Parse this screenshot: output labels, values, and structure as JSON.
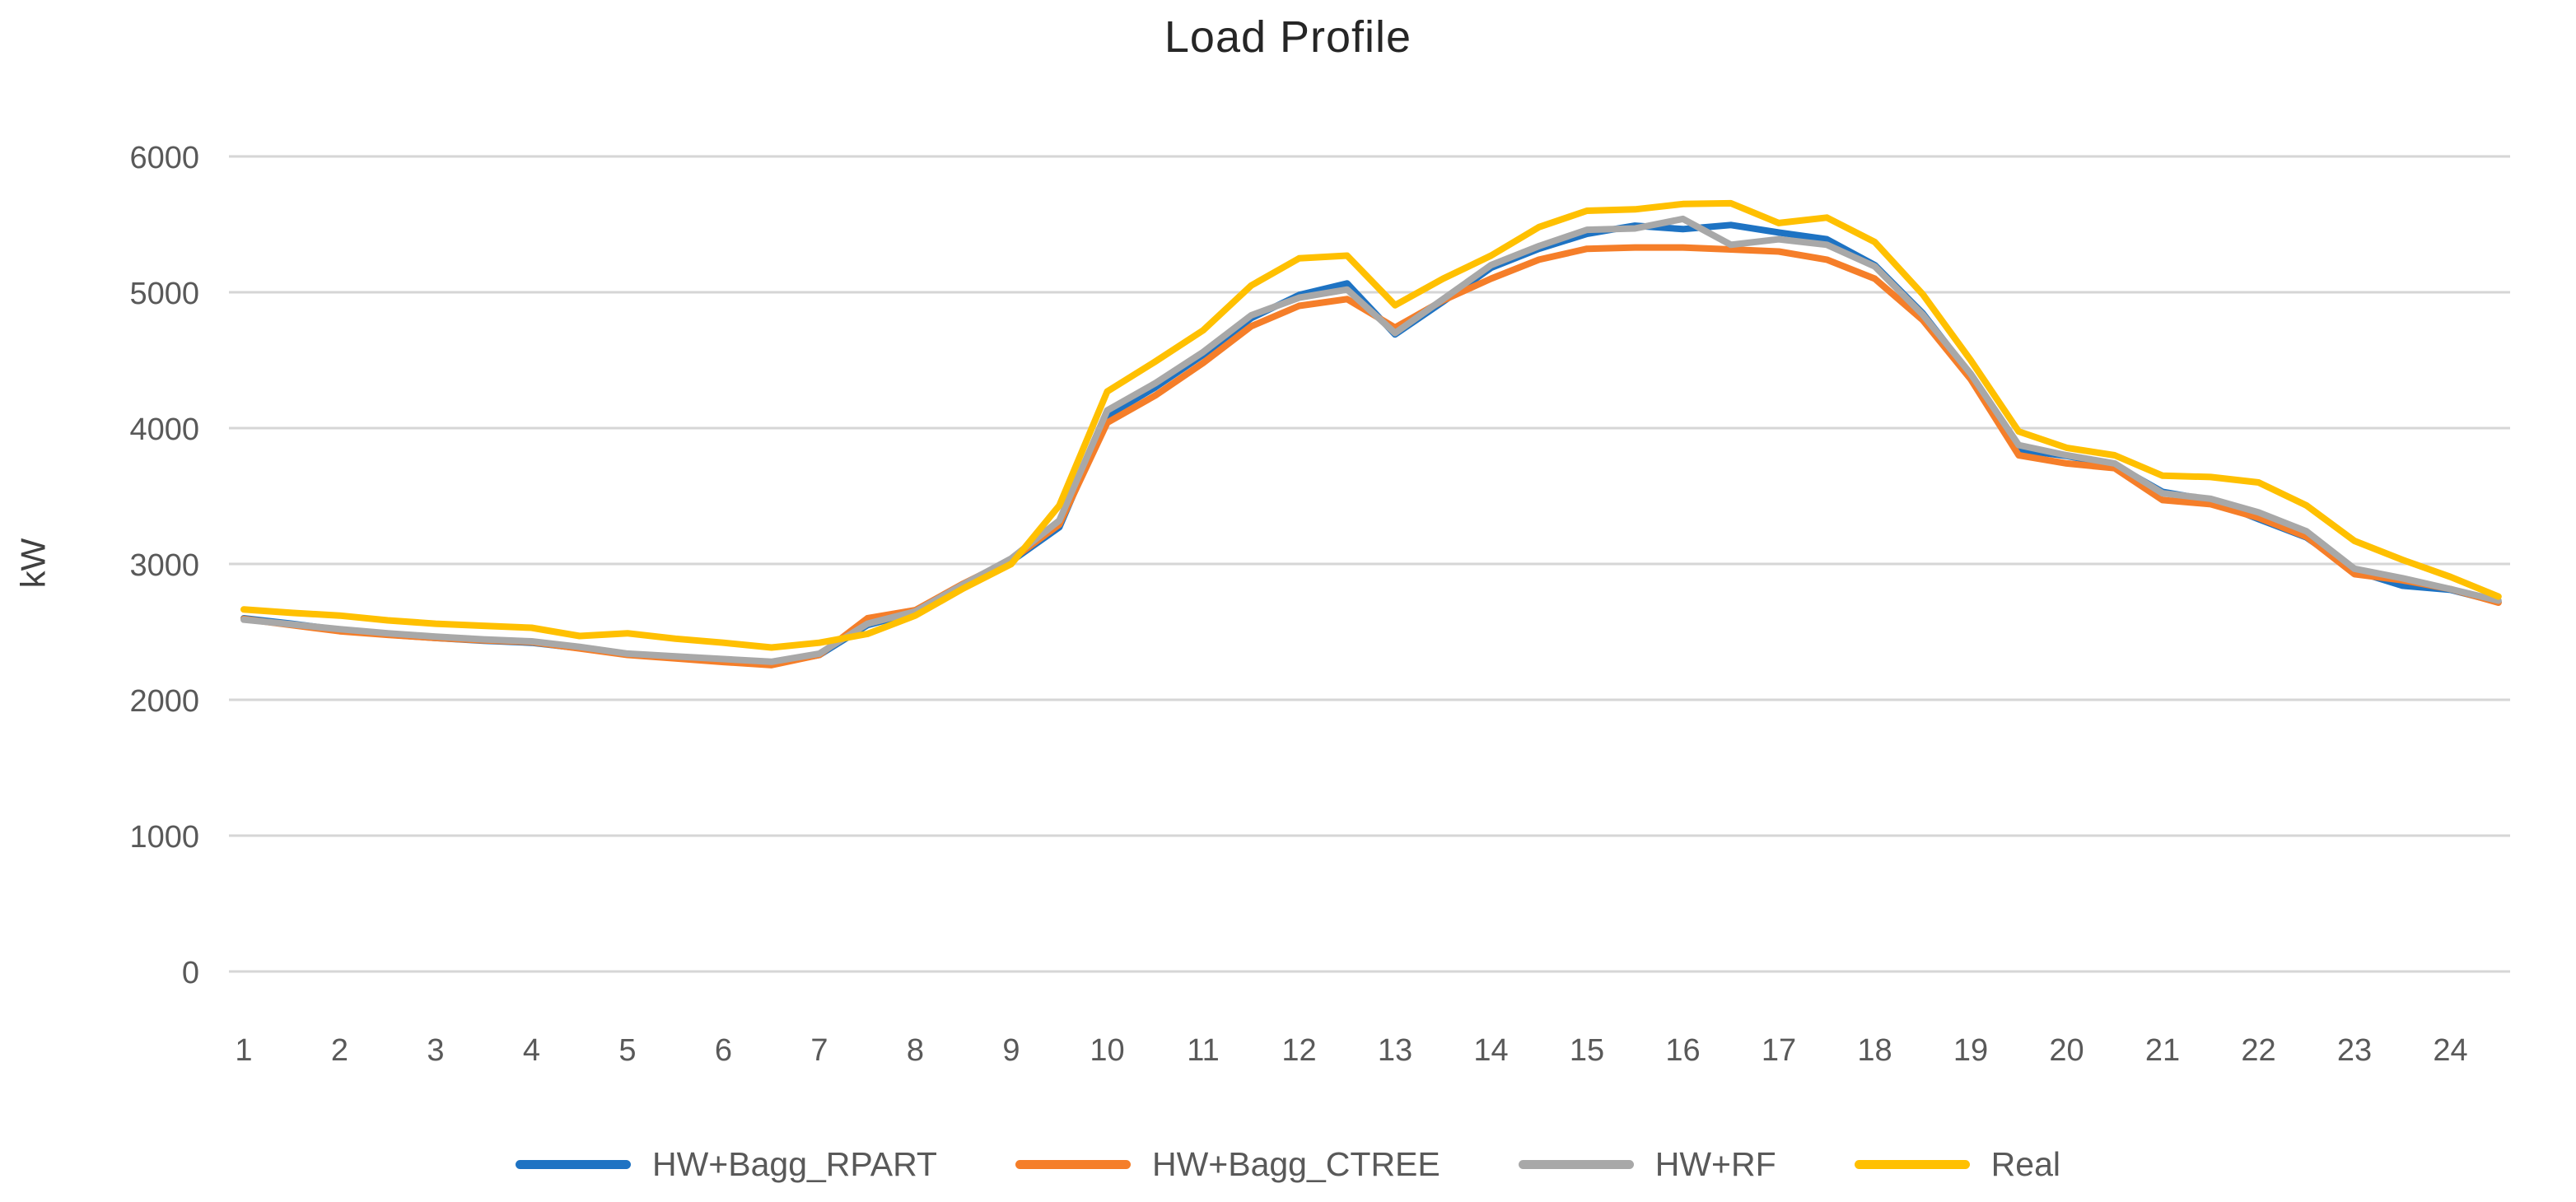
{
  "title": "Load Profile",
  "y_axis": {
    "label": "kW",
    "ticks": [
      0,
      1000,
      2000,
      3000,
      4000,
      5000,
      6000
    ]
  },
  "x_axis": {
    "ticks": [
      1,
      2,
      3,
      4,
      5,
      6,
      7,
      8,
      9,
      10,
      11,
      12,
      13,
      14,
      15,
      16,
      17,
      18,
      19,
      20,
      21,
      22,
      23,
      24
    ]
  },
  "colors": {
    "blue": "#1E73C3",
    "orange": "#F57E29",
    "gray": "#A8A8A8",
    "yellow": "#FFC000",
    "gridline": "#D6D6D6",
    "title_text": "#262626",
    "axis_text": "#595959"
  },
  "legend": [
    {
      "name": "HW+Bagg_RPART",
      "color": "#1E73C3"
    },
    {
      "name": "HW+Bagg_CTREE",
      "color": "#F57E29"
    },
    {
      "name": "HW+RF",
      "color": "#A8A8A8"
    },
    {
      "name": "Real",
      "color": "#FFC000"
    }
  ],
  "chart_data": {
    "type": "line",
    "title": "Load Profile",
    "xlabel": "",
    "ylabel": "kW",
    "ylim": [
      0,
      6000
    ],
    "grid": true,
    "legend_position": "bottom",
    "x_tick_labels": [
      1,
      2,
      3,
      4,
      5,
      6,
      7,
      8,
      9,
      10,
      11,
      12,
      13,
      14,
      15,
      16,
      17,
      18,
      19,
      20,
      21,
      22,
      23,
      24
    ],
    "x": [
      1,
      1.5,
      2,
      2.5,
      3,
      3.5,
      4,
      4.5,
      5,
      5.5,
      6,
      6.5,
      7,
      7.5,
      8,
      8.5,
      9,
      9.5,
      10,
      10.5,
      11,
      11.5,
      12,
      12.5,
      13,
      13.5,
      14,
      14.5,
      15,
      15.5,
      16,
      16.5,
      17,
      17.5,
      18,
      18.5,
      19,
      19.5,
      20,
      20.5,
      21,
      21.5,
      22,
      22.5,
      23,
      23.5,
      24,
      24.5
    ],
    "series": [
      {
        "name": "HW+Bagg_RPART",
        "color": "#1E73C3",
        "values": [
          2600,
          2560,
          2515,
          2480,
          2455,
          2435,
          2420,
          2380,
          2335,
          2310,
          2290,
          2265,
          2330,
          2550,
          2645,
          2840,
          3020,
          3270,
          4090,
          4300,
          4540,
          4810,
          4980,
          5065,
          4690,
          4930,
          5180,
          5320,
          5430,
          5490,
          5465,
          5495,
          5440,
          5390,
          5200,
          4845,
          4390,
          3840,
          3795,
          3730,
          3530,
          3470,
          3330,
          3195,
          2950,
          2840,
          2810,
          2720
        ]
      },
      {
        "name": "HW+Bagg_CTREE",
        "color": "#F57E29",
        "values": [
          2595,
          2550,
          2505,
          2478,
          2455,
          2438,
          2425,
          2378,
          2330,
          2305,
          2278,
          2255,
          2330,
          2600,
          2660,
          2855,
          3030,
          3290,
          4040,
          4240,
          4480,
          4750,
          4900,
          4950,
          4740,
          4940,
          5100,
          5240,
          5320,
          5330,
          5330,
          5315,
          5300,
          5240,
          5100,
          4795,
          4360,
          3800,
          3740,
          3705,
          3470,
          3440,
          3340,
          3200,
          2925,
          2880,
          2815,
          2715
        ]
      },
      {
        "name": "HW+RF",
        "color": "#A8A8A8",
        "values": [
          2590,
          2555,
          2520,
          2490,
          2465,
          2445,
          2430,
          2390,
          2340,
          2320,
          2300,
          2280,
          2340,
          2560,
          2650,
          2850,
          3040,
          3320,
          4130,
          4330,
          4560,
          4830,
          4960,
          5020,
          4700,
          4950,
          5200,
          5340,
          5460,
          5470,
          5540,
          5350,
          5390,
          5350,
          5190,
          4835,
          4400,
          3875,
          3800,
          3740,
          3520,
          3480,
          3380,
          3240,
          2965,
          2895,
          2815,
          2730
        ]
      },
      {
        "name": "Real",
        "color": "#FFC000",
        "values": [
          2665,
          2640,
          2620,
          2585,
          2560,
          2545,
          2530,
          2470,
          2490,
          2450,
          2420,
          2385,
          2420,
          2485,
          2620,
          2820,
          3000,
          3430,
          4270,
          4490,
          4720,
          5050,
          5250,
          5270,
          4905,
          5100,
          5270,
          5480,
          5600,
          5610,
          5650,
          5655,
          5510,
          5550,
          5370,
          4985,
          4500,
          3975,
          3855,
          3800,
          3650,
          3640,
          3600,
          3430,
          3170,
          3030,
          2905,
          2760
        ]
      }
    ]
  }
}
